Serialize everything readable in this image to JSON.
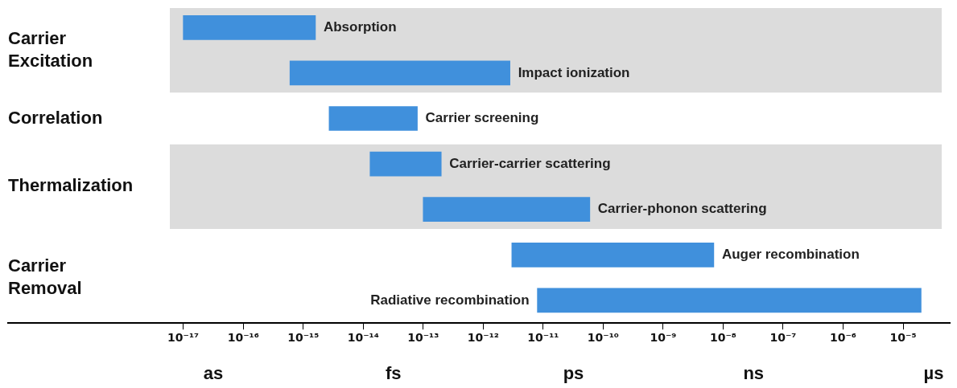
{
  "chart_data": {
    "type": "bar",
    "orientation": "horizontal",
    "log": "x",
    "categories": [
      "Absorption",
      "Impact ionization",
      "Carrier screening",
      "Carrier-carrier scattering",
      "Carrier-phonon scattering",
      "Auger recombination",
      "Radiative recombination"
    ],
    "base": [
      1e-17,
      6e-16,
      2.7e-15,
      1.3e-14,
      1e-13,
      3e-12,
      8e-12
    ],
    "values": [
      1.59e-15,
      2.8e-12,
      7.73e-14,
      1.87e-13,
      5.99e-11,
      6.997e-09,
      2e-05
    ],
    "color": "#4090dc",
    "xlim": [
      1.2e-20,
      6e-05
    ],
    "xticks": [
      {
        "value": 1e-17,
        "label": "10⁻¹⁷"
      },
      {
        "value": 1e-16,
        "label": "10⁻¹⁶"
      },
      {
        "value": 1e-15,
        "label": "10⁻¹⁵"
      },
      {
        "value": 1e-14,
        "label": "10⁻¹⁴"
      },
      {
        "value": 1e-13,
        "label": "10⁻¹³"
      },
      {
        "value": 1e-12,
        "label": "10⁻¹²"
      },
      {
        "value": 1e-11,
        "label": "10⁻¹¹"
      },
      {
        "value": 1e-10,
        "label": "10⁻¹⁰"
      },
      {
        "value": 1e-09,
        "label": "10⁻⁹"
      },
      {
        "value": 1e-08,
        "label": "10⁻⁸"
      },
      {
        "value": 1e-07,
        "label": "10⁻⁷"
      },
      {
        "value": 1e-06,
        "label": "10⁻⁶"
      },
      {
        "value": 1e-05,
        "label": "10⁻⁵"
      }
    ],
    "tick_labels": "x",
    "grid": false,
    "legend": false,
    "bands": [
      {
        "axis": "y",
        "from": "Absorption",
        "to": "Impact ionization",
        "color": "#dcdcdc"
      },
      {
        "axis": "y",
        "from": "Carrier-carrier scattering",
        "to": "Carrier-phonon scattering",
        "color": "#dcdcdc"
      }
    ],
    "annotations": [
      "Carrier Excitation",
      "Correlation",
      "Thermalization",
      "Carrier Removal",
      "as",
      "fs",
      "ps",
      "ns",
      "µs"
    ]
  }
}
